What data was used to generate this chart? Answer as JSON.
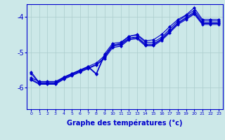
{
  "title": "",
  "xlabel": "Graphe des températures (°c)",
  "ylabel": "",
  "bg_color": "#cce8e8",
  "line_color": "#0000cc",
  "grid_color": "#aacccc",
  "xlim": [
    -0.5,
    23.5
  ],
  "ylim": [
    -6.6,
    -3.65
  ],
  "yticks": [
    -6,
    -5,
    -4
  ],
  "xticks": [
    0,
    1,
    2,
    3,
    4,
    5,
    6,
    7,
    8,
    9,
    10,
    11,
    12,
    13,
    14,
    15,
    16,
    17,
    18,
    19,
    20,
    21,
    22,
    23
  ],
  "series": [
    {
      "x": [
        0,
        1,
        2,
        3,
        4,
        5,
        6,
        7,
        8,
        9,
        10,
        11,
        12,
        13,
        14,
        15,
        16,
        17,
        18,
        19,
        20,
        21,
        22,
        23
      ],
      "y": [
        -5.55,
        -5.85,
        -5.85,
        -5.85,
        -5.7,
        -5.6,
        -5.5,
        -5.4,
        -5.6,
        -5.05,
        -4.75,
        -4.72,
        -4.55,
        -4.52,
        -4.72,
        -4.72,
        -4.58,
        -4.35,
        -4.12,
        -3.97,
        -3.82,
        -4.12,
        -4.12,
        -4.12
      ]
    },
    {
      "x": [
        0,
        1,
        2,
        3,
        4,
        5,
        6,
        7,
        8,
        9,
        10,
        11,
        12,
        13,
        14,
        15,
        16,
        17,
        18,
        19,
        20,
        21,
        22,
        23
      ],
      "y": [
        -5.6,
        -5.87,
        -5.87,
        -5.87,
        -5.72,
        -5.62,
        -5.52,
        -5.42,
        -5.62,
        -5.1,
        -4.8,
        -4.77,
        -4.6,
        -4.57,
        -4.77,
        -4.77,
        -4.62,
        -4.4,
        -4.17,
        -4.02,
        -3.87,
        -4.17,
        -4.17,
        -4.17
      ]
    },
    {
      "x": [
        0,
        1,
        2,
        3,
        4,
        5,
        6,
        7,
        8,
        9,
        10,
        11,
        12,
        13,
        14,
        15,
        16,
        17,
        18,
        19,
        20,
        21,
        22,
        23
      ],
      "y": [
        -5.72,
        -5.82,
        -5.82,
        -5.82,
        -5.7,
        -5.6,
        -5.5,
        -5.4,
        -5.3,
        -5.1,
        -4.8,
        -4.75,
        -4.55,
        -4.5,
        -4.68,
        -4.65,
        -4.5,
        -4.28,
        -4.08,
        -3.95,
        -3.75,
        -4.08,
        -4.08,
        -4.08
      ]
    },
    {
      "x": [
        0,
        1,
        2,
        3,
        4,
        5,
        6,
        7,
        8,
        9,
        10,
        11,
        12,
        13,
        14,
        15,
        16,
        17,
        18,
        19,
        20,
        21,
        22,
        23
      ],
      "y": [
        -5.75,
        -5.88,
        -5.88,
        -5.88,
        -5.74,
        -5.64,
        -5.54,
        -5.44,
        -5.34,
        -5.15,
        -4.83,
        -4.8,
        -4.62,
        -4.59,
        -4.79,
        -4.79,
        -4.64,
        -4.42,
        -4.19,
        -4.05,
        -3.9,
        -4.19,
        -4.19,
        -4.19
      ]
    },
    {
      "x": [
        0,
        1,
        2,
        3,
        4,
        5,
        6,
        7,
        8,
        9,
        10,
        11,
        12,
        13,
        14,
        15,
        16,
        17,
        18,
        19,
        20,
        21,
        22,
        23
      ],
      "y": [
        -5.78,
        -5.9,
        -5.9,
        -5.9,
        -5.76,
        -5.66,
        -5.56,
        -5.46,
        -5.36,
        -5.18,
        -4.87,
        -4.83,
        -4.65,
        -4.62,
        -4.82,
        -4.82,
        -4.67,
        -4.45,
        -4.22,
        -4.08,
        -3.93,
        -4.22,
        -4.22,
        -4.22
      ]
    }
  ],
  "marker": "D",
  "markersize": 2.0,
  "linewidth": 0.8
}
